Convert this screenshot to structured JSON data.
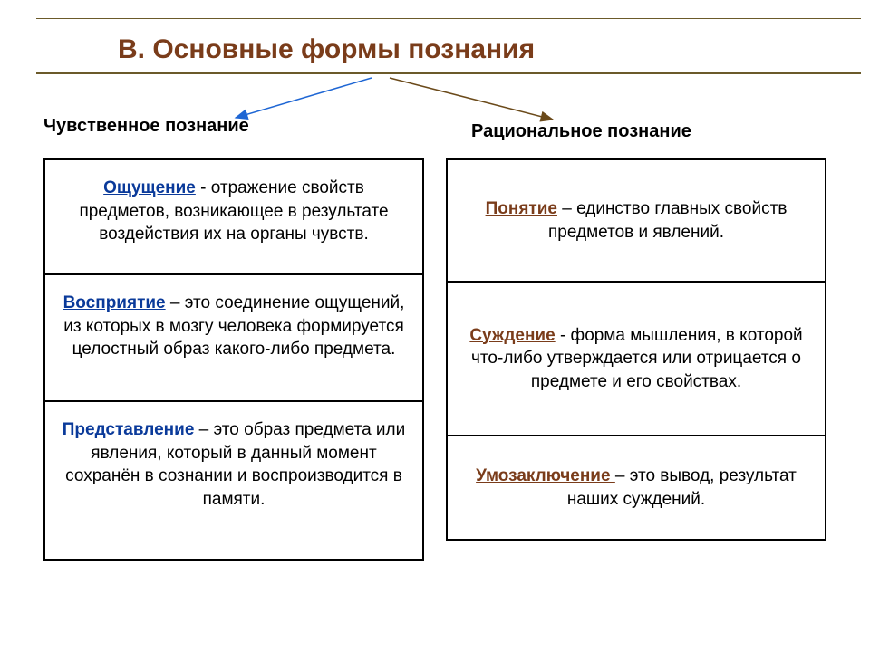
{
  "title": "В. Основные формы познания",
  "subheadings": {
    "left": "Чувственное познание",
    "right": "Рациональное познание"
  },
  "left_table": [
    {
      "term": "Ощущение",
      "definition": " - отражение свойств предметов, возникающее в результате воздействия их на органы чувств."
    },
    {
      "term": "Восприятие",
      "definition": " – это соединение ощущений, из которых в мозгу человека формируется целостный образ какого-либо предмета."
    },
    {
      "term": "Представление",
      "definition": " – это образ предмета или явления, который в данный момент сохранён в сознании и воспроизводится в памяти."
    }
  ],
  "right_table": [
    {
      "term": "Понятие",
      "definition": " – единство главных свойств предметов и явлений."
    },
    {
      "term": "Суждение",
      "definition": " - форма мышления, в которой что-либо утверждается или отрицается о предмете и его свойствах."
    },
    {
      "term": "Умозаключение ",
      "definition": "– это вывод, результат наших суждений."
    }
  ],
  "colors": {
    "title_color": "#7a3c1a",
    "rule_color": "#6b5a2a",
    "left_term_color": "#0a3a9a",
    "right_term_color": "#7a3c1a",
    "arrow_blue": "#1e66d4",
    "arrow_brown": "#6b4a1a"
  },
  "left_heights": [
    125,
    140,
    175
  ],
  "right_heights": [
    133,
    170,
    115
  ]
}
